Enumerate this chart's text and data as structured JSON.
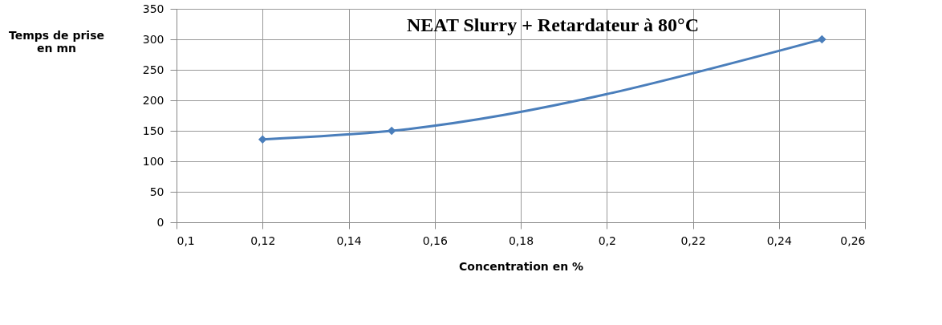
{
  "chart_data": {
    "type": "line",
    "title": "NEAT Slurry + Retardateur à 80°C",
    "xlabel": "Concentration en %",
    "ylabel": "Temps de prise en mn",
    "x": [
      0.12,
      0.15,
      0.25
    ],
    "series": [
      {
        "color": "#4a7ebb",
        "values": [
          136,
          150,
          300
        ]
      }
    ],
    "xlim": [
      0.1,
      0.26
    ],
    "xticks": [
      {
        "value": 0.1,
        "label": "0,1"
      },
      {
        "value": 0.12,
        "label": "0,12"
      },
      {
        "value": 0.14,
        "label": "0,14"
      },
      {
        "value": 0.16,
        "label": "0,16"
      },
      {
        "value": 0.18,
        "label": "0,18"
      },
      {
        "value": 0.2,
        "label": "0,2"
      },
      {
        "value": 0.22,
        "label": "0,22"
      },
      {
        "value": 0.24,
        "label": "0,24"
      },
      {
        "value": 0.26,
        "label": "0,26"
      }
    ],
    "ylim": [
      0,
      350
    ],
    "yticks": [
      0,
      50,
      100,
      150,
      200,
      250,
      300,
      350
    ],
    "grid": true,
    "marker": "diamond",
    "line_style": "solid"
  }
}
